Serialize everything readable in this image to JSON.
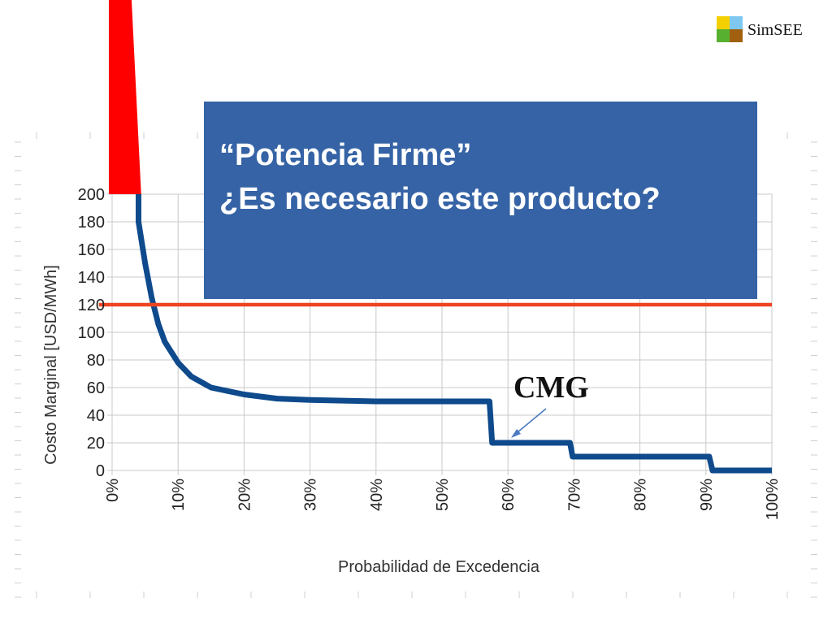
{
  "title": {
    "line1": "“Potencia Firme”",
    "line2": "¿Es necesario este producto?"
  },
  "logo": {
    "text": "SimSEE",
    "colors": [
      "#f5d000",
      "#7ec8f0",
      "#58b030",
      "#a06010"
    ]
  },
  "annotation": {
    "text": "CMG"
  },
  "chart_data": {
    "type": "line",
    "title": "",
    "xlabel": "Probabilidad de Excedencia",
    "ylabel": "Costo Marginal [USD/MWh]",
    "xlim": [
      0,
      100
    ],
    "ylim": [
      0,
      200
    ],
    "x_tick_labels": [
      "0%",
      "10%",
      "20%",
      "30%",
      "40%",
      "50%",
      "60%",
      "70%",
      "80%",
      "90%",
      "100%"
    ],
    "y_tick_labels": [
      "0",
      "20",
      "40",
      "60",
      "80",
      "100",
      "120",
      "140",
      "160",
      "180",
      "200"
    ],
    "grid": true,
    "series": [
      {
        "color": "#0e4a8c",
        "points": [
          [
            4,
            200
          ],
          [
            4,
            180
          ],
          [
            5,
            150
          ],
          [
            6,
            125
          ],
          [
            7,
            106
          ],
          [
            8,
            93
          ],
          [
            10,
            78
          ],
          [
            12,
            68
          ],
          [
            15,
            60
          ],
          [
            20,
            55
          ],
          [
            25,
            52
          ],
          [
            30,
            51
          ],
          [
            40,
            50
          ],
          [
            57.2,
            50
          ],
          [
            57.6,
            20
          ],
          [
            69.4,
            20
          ],
          [
            69.8,
            10
          ],
          [
            90.5,
            10
          ],
          [
            91,
            0
          ],
          [
            100,
            0
          ]
        ]
      },
      {
        "color": "#ee4422",
        "points": [
          [
            -2,
            120
          ],
          [
            100,
            120
          ]
        ]
      }
    ],
    "off_scale_band": {
      "color": "#ff0000",
      "x_range": [
        -0.5,
        4.4
      ]
    }
  }
}
